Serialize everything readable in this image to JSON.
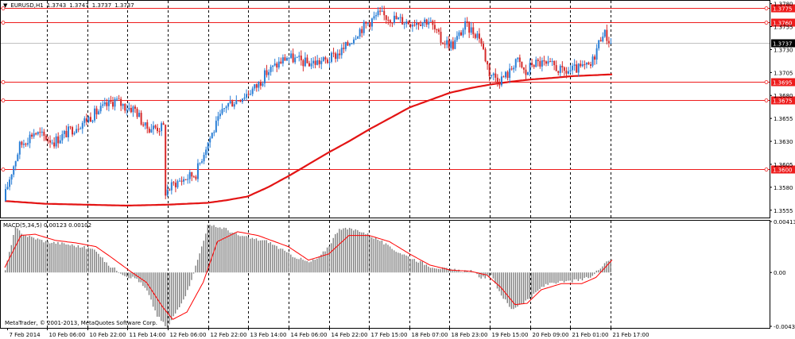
{
  "header": {
    "arrow": "▼",
    "symbol": "EURUSD,H1",
    "open": "1.3743",
    "high": "1.3747",
    "low": "1.3737",
    "close": "1.3737"
  },
  "macd_header": {
    "label": "MACD(5,34,5)",
    "main": "0.00123",
    "signal": "0.00102"
  },
  "copyright": "MetaTrader, © 2001-2013, MetaQuotes Software Corp.",
  "colors": {
    "bull": "#2b7fd6",
    "bear": "#d62b2b",
    "level": "#ee1c1c",
    "ma": "#e31414",
    "grid": "#000000",
    "histogram": "#808080",
    "signal": "#ff0000",
    "current_price_bg": "#000000"
  },
  "chart_data": [
    {
      "type": "candlestick",
      "title": "EURUSD,H1",
      "y_ticks": [
        "1.3780",
        "1.3755",
        "1.3730",
        "1.3705",
        "1.3680",
        "1.3655",
        "1.3630",
        "1.3605",
        "1.3580",
        "1.3555"
      ],
      "ylim": [
        1.3547,
        1.3784
      ],
      "x_labels": [
        "7 Feb 2014",
        "10 Feb 06:00",
        "10 Feb 22:00",
        "11 Feb 14:00",
        "12 Feb 06:00",
        "12 Feb 22:00",
        "13 Feb 14:00",
        "14 Feb 06:00",
        "14 Feb 22:00",
        "17 Feb 15:00",
        "18 Feb 07:00",
        "18 Feb 23:00",
        "19 Feb 15:00",
        "20 Feb 09:00",
        "21 Feb 01:00",
        "21 Feb 17:00"
      ],
      "horizontal_levels": [
        {
          "value": 1.3775,
          "label": "1.3775"
        },
        {
          "value": 1.376,
          "label": "1.3760"
        },
        {
          "value": 1.3695,
          "label": "1.3695"
        },
        {
          "value": 1.3675,
          "label": "1.3675"
        },
        {
          "value": 1.36,
          "label": "1.3600"
        }
      ],
      "current_price": {
        "value": 1.3737,
        "label": "1.3737"
      },
      "moving_average": {
        "x": [
          0,
          20,
          40,
          60,
          80,
          100,
          110,
          120,
          130,
          140,
          150,
          160,
          170,
          180,
          190,
          200,
          210,
          220,
          230,
          240,
          250,
          260,
          270,
          280,
          290,
          300
        ],
        "y": [
          1.3565,
          1.3562,
          1.3561,
          1.356,
          1.3561,
          1.3563,
          1.3566,
          1.357,
          1.358,
          1.3592,
          1.3605,
          1.3618,
          1.363,
          1.3643,
          1.3655,
          1.3667,
          1.3675,
          1.3683,
          1.3688,
          1.3692,
          1.3695,
          1.36975,
          1.3699,
          1.3701,
          1.3702,
          1.3703
        ]
      },
      "anchors": {
        "x": [
          0,
          3,
          8,
          15,
          25,
          35,
          45,
          55,
          60,
          65,
          70,
          79,
          80,
          85,
          95,
          100,
          110,
          115,
          120,
          125,
          130,
          140,
          150,
          160,
          168,
          175,
          185,
          200,
          210,
          216,
          222,
          228,
          235,
          240,
          245,
          250,
          253,
          258,
          261,
          266,
          268,
          272,
          276,
          282,
          290,
          296,
          300
        ],
        "y": [
          1.3565,
          1.359,
          1.3625,
          1.364,
          1.363,
          1.3645,
          1.366,
          1.3675,
          1.3668,
          1.3665,
          1.3645,
          1.3645,
          1.3575,
          1.3585,
          1.3595,
          1.3625,
          1.367,
          1.3675,
          1.3682,
          1.369,
          1.3705,
          1.3722,
          1.3715,
          1.3718,
          1.373,
          1.375,
          1.3768,
          1.376,
          1.3762,
          1.374,
          1.3735,
          1.3756,
          1.3745,
          1.3705,
          1.3697,
          1.3705,
          1.372,
          1.3703,
          1.3715,
          1.3715,
          1.3712,
          1.3712,
          1.3705,
          1.3708,
          1.3712,
          1.375,
          1.3737
        ]
      }
    },
    {
      "type": "bar",
      "title": "MACD(5,34,5)",
      "y_ticks": [
        "0.00413",
        "0.00",
        "-0.00436"
      ],
      "ylim": [
        -0.00436,
        0.00413
      ],
      "histogram": {
        "x": [
          0,
          5,
          10,
          20,
          30,
          40,
          45,
          50,
          60,
          65,
          70,
          75,
          80,
          85,
          90,
          95,
          100,
          108,
          115,
          120,
          130,
          140,
          150,
          155,
          160,
          165,
          175,
          185,
          190,
          200,
          210,
          220,
          230,
          235,
          240,
          245,
          250,
          255,
          260,
          265,
          270,
          275,
          280,
          285,
          290,
          296,
          300
        ],
        "y": [
          0.0002,
          0.0036,
          0.003,
          0.0025,
          0.0023,
          0.002,
          0.0018,
          0.0007,
          -0.0003,
          -0.0005,
          -0.0015,
          -0.0035,
          -0.0045,
          -0.003,
          -0.0015,
          0.001,
          0.0038,
          0.0036,
          0.003,
          0.0028,
          0.0025,
          0.0015,
          0.0008,
          0.0012,
          0.0022,
          0.0036,
          0.0034,
          0.0026,
          0.002,
          0.0012,
          0.0005,
          0.0002,
          0.0001,
          -0.0004,
          -0.0003,
          -0.0018,
          -0.003,
          -0.0025,
          -0.002,
          -0.0012,
          -0.0008,
          -0.0008,
          -0.0007,
          -0.0006,
          -0.0003,
          0.0008,
          0.00123
        ]
      },
      "signal": {
        "x": [
          0,
          8,
          15,
          25,
          35,
          45,
          52,
          62,
          70,
          78,
          83,
          90,
          98,
          105,
          115,
          125,
          140,
          150,
          160,
          170,
          180,
          190,
          200,
          210,
          220,
          230,
          238,
          245,
          252,
          258,
          265,
          275,
          285,
          292,
          300
        ],
        "y": [
          0.0004,
          0.003,
          0.0031,
          0.0026,
          0.0024,
          0.0021,
          0.0013,
          0.0001,
          -0.0008,
          -0.0028,
          -0.0038,
          -0.0032,
          -0.0008,
          0.0025,
          0.0033,
          0.003,
          0.0021,
          0.001,
          0.0015,
          0.003,
          0.003,
          0.0025,
          0.0015,
          0.0006,
          0.0002,
          0.0001,
          -0.0002,
          -0.0012,
          -0.0026,
          -0.0025,
          -0.0014,
          -0.0009,
          -0.0009,
          -0.0004,
          0.00102
        ]
      }
    }
  ]
}
